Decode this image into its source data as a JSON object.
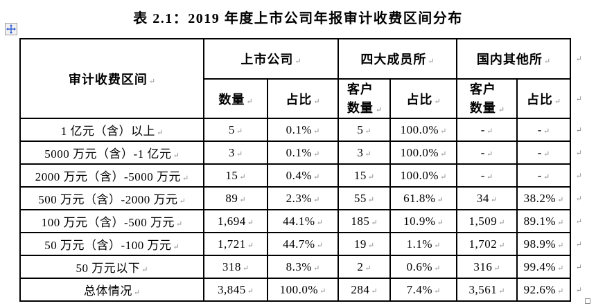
{
  "title": "表 2.1：2019 年度上市公司年报审计收费区间分布",
  "table": {
    "corner_header": "审计收费区间",
    "groups": [
      {
        "label": "上市公司",
        "sub": [
          "数量",
          "占比"
        ]
      },
      {
        "label": "四大成员所",
        "sub": [
          "客户数量",
          "占比"
        ]
      },
      {
        "label": "国内其他所",
        "sub": [
          "客户数量",
          "占比"
        ]
      }
    ],
    "rows": [
      [
        "1 亿元（含）以上",
        "5",
        "0.1%",
        "5",
        "100.0%",
        "-",
        "-"
      ],
      [
        "5000 万元（含）-1 亿元",
        "3",
        "0.1%",
        "3",
        "100.0%",
        "-",
        "-"
      ],
      [
        "2000 万元（含）-5000 万元",
        "15",
        "0.4%",
        "15",
        "100.0%",
        "-",
        "-"
      ],
      [
        "500 万元（含）-2000 万元",
        "89",
        "2.3%",
        "55",
        "61.8%",
        "34",
        "38.2%"
      ],
      [
        "100 万元（含）-500 万元",
        "1,694",
        "44.1%",
        "185",
        "10.9%",
        "1,509",
        "89.1%"
      ],
      [
        "50 万元（含）-100 万元",
        "1,721",
        "44.7%",
        "19",
        "1.1%",
        "1,702",
        "98.9%"
      ],
      [
        "50 万元以下",
        "318",
        "8.3%",
        "2",
        "0.6%",
        "316",
        "99.4%"
      ],
      [
        "总体情况",
        "3,845",
        "100.0%",
        "284",
        "7.4%",
        "3,561",
        "92.6%"
      ]
    ]
  },
  "marks": {
    "cell_end": "↵",
    "row_end": "↵"
  },
  "icons": {
    "move_handle": "move-icon",
    "resize_handle": "resize-square"
  },
  "colors": {
    "background": "#ffffff",
    "border": "#000000",
    "text": "#000000",
    "formatting_mark": "#8c8c8c",
    "handle_arrow": "#2f5bd6",
    "handle_box_border": "#9b9b9b"
  }
}
